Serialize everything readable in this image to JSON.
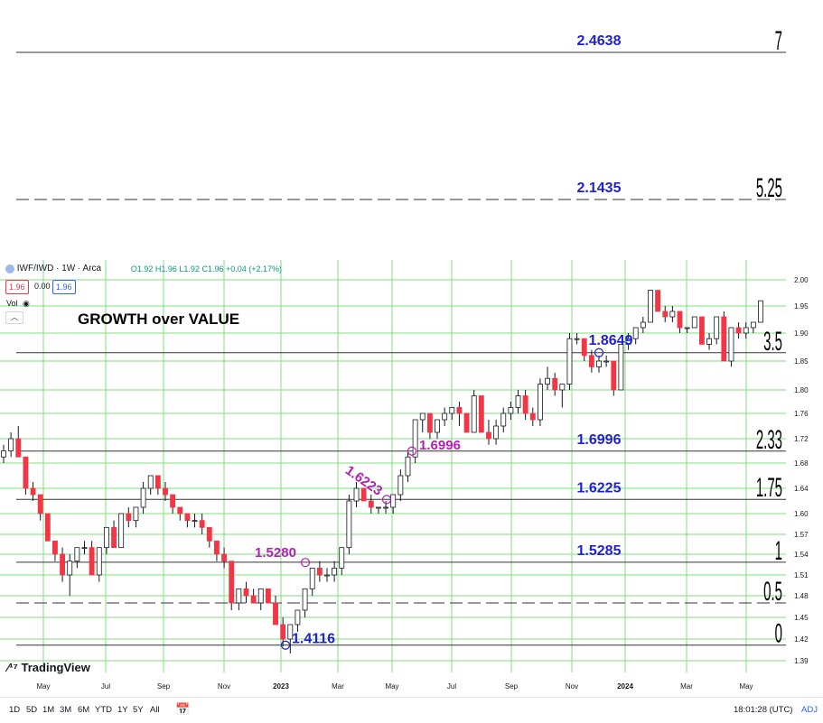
{
  "header": {
    "symbol": "IWF/IWD · 1W · Arca",
    "ohlc": "O1.92 H1.96 L1.92 C1.96 +0.04 (+2.17%)",
    "bid": "1.96",
    "spread": "0.00",
    "ask": "1.96",
    "vol": "Vol"
  },
  "annotation_title": "GROWTH over VALUE",
  "logo_text": "TradingView",
  "bottom": {
    "ranges": [
      "1D",
      "5D",
      "1M",
      "3M",
      "6M",
      "YTD",
      "1Y",
      "5Y",
      "All"
    ],
    "time": "18:01:28 (UTC)",
    "adj": "ADJ"
  },
  "colors": {
    "up": "#ffffff",
    "down": "#f23645",
    "grid": "#7ee07e",
    "fib_label": "#1f1fd6",
    "pivot_label": "#b31fb3"
  },
  "chart_data": {
    "type": "candlestick",
    "title": "GROWTH over VALUE",
    "ylim": [
      1.38,
      2.01
    ],
    "y_ticks": [
      "2.00",
      "1.95",
      "1.90",
      "1.85",
      "1.80",
      "1.76",
      "1.72",
      "1.68",
      "1.64",
      "1.60",
      "1.57",
      "1.54",
      "1.51",
      "1.48",
      "1.45",
      "1.42",
      "1.39"
    ],
    "x_ticks": [
      "May",
      "Jul",
      "Sep",
      "Nov",
      "2023",
      "Mar",
      "May",
      "Jul",
      "Sep",
      "Nov",
      "2024",
      "Mar",
      "May"
    ],
    "candles_ohlc": [
      [
        1.69,
        1.71,
        1.68,
        1.7
      ],
      [
        1.7,
        1.73,
        1.69,
        1.72
      ],
      [
        1.72,
        1.74,
        1.69,
        1.69
      ],
      [
        1.69,
        1.69,
        1.63,
        1.64
      ],
      [
        1.64,
        1.65,
        1.62,
        1.63
      ],
      [
        1.63,
        1.63,
        1.59,
        1.6
      ],
      [
        1.6,
        1.6,
        1.56,
        1.56
      ],
      [
        1.56,
        1.56,
        1.53,
        1.54
      ],
      [
        1.54,
        1.55,
        1.5,
        1.51
      ],
      [
        1.51,
        1.54,
        1.48,
        1.53
      ],
      [
        1.53,
        1.55,
        1.52,
        1.55
      ],
      [
        1.55,
        1.56,
        1.54,
        1.55
      ],
      [
        1.55,
        1.56,
        1.51,
        1.51
      ],
      [
        1.51,
        1.55,
        1.5,
        1.55
      ],
      [
        1.55,
        1.58,
        1.54,
        1.58
      ],
      [
        1.58,
        1.59,
        1.55,
        1.55
      ],
      [
        1.55,
        1.6,
        1.55,
        1.6
      ],
      [
        1.6,
        1.61,
        1.58,
        1.59
      ],
      [
        1.59,
        1.61,
        1.58,
        1.61
      ],
      [
        1.61,
        1.65,
        1.6,
        1.64
      ],
      [
        1.64,
        1.66,
        1.63,
        1.66
      ],
      [
        1.66,
        1.66,
        1.63,
        1.64
      ],
      [
        1.64,
        1.65,
        1.62,
        1.63
      ],
      [
        1.63,
        1.63,
        1.6,
        1.61
      ],
      [
        1.61,
        1.61,
        1.59,
        1.6
      ],
      [
        1.6,
        1.6,
        1.58,
        1.59
      ],
      [
        1.59,
        1.6,
        1.58,
        1.59
      ],
      [
        1.59,
        1.6,
        1.57,
        1.58
      ],
      [
        1.58,
        1.58,
        1.55,
        1.56
      ],
      [
        1.56,
        1.56,
        1.53,
        1.54
      ],
      [
        1.54,
        1.55,
        1.52,
        1.53
      ],
      [
        1.53,
        1.53,
        1.46,
        1.47
      ],
      [
        1.47,
        1.49,
        1.46,
        1.49
      ],
      [
        1.49,
        1.5,
        1.47,
        1.48
      ],
      [
        1.48,
        1.49,
        1.47,
        1.47
      ],
      [
        1.47,
        1.49,
        1.46,
        1.49
      ],
      [
        1.49,
        1.49,
        1.47,
        1.47
      ],
      [
        1.47,
        1.48,
        1.44,
        1.44
      ],
      [
        1.44,
        1.45,
        1.41,
        1.42
      ],
      [
        1.42,
        1.44,
        1.4,
        1.44
      ],
      [
        1.44,
        1.46,
        1.43,
        1.46
      ],
      [
        1.46,
        1.49,
        1.45,
        1.49
      ],
      [
        1.49,
        1.52,
        1.48,
        1.52
      ],
      [
        1.52,
        1.53,
        1.5,
        1.51
      ],
      [
        1.51,
        1.52,
        1.5,
        1.51
      ],
      [
        1.51,
        1.53,
        1.5,
        1.52
      ],
      [
        1.52,
        1.55,
        1.51,
        1.55
      ],
      [
        1.55,
        1.63,
        1.54,
        1.62
      ],
      [
        1.62,
        1.65,
        1.61,
        1.64
      ],
      [
        1.64,
        1.64,
        1.62,
        1.62
      ],
      [
        1.62,
        1.63,
        1.6,
        1.61
      ],
      [
        1.61,
        1.61,
        1.6,
        1.61
      ],
      [
        1.61,
        1.62,
        1.6,
        1.61
      ],
      [
        1.61,
        1.63,
        1.6,
        1.63
      ],
      [
        1.63,
        1.67,
        1.62,
        1.66
      ],
      [
        1.66,
        1.7,
        1.65,
        1.69
      ],
      [
        1.69,
        1.75,
        1.68,
        1.75
      ],
      [
        1.75,
        1.76,
        1.73,
        1.76
      ],
      [
        1.76,
        1.76,
        1.72,
        1.73
      ],
      [
        1.73,
        1.75,
        1.72,
        1.75
      ],
      [
        1.75,
        1.77,
        1.74,
        1.76
      ],
      [
        1.76,
        1.77,
        1.75,
        1.77
      ],
      [
        1.77,
        1.78,
        1.74,
        1.76
      ],
      [
        1.76,
        1.76,
        1.73,
        1.73
      ],
      [
        1.73,
        1.8,
        1.73,
        1.79
      ],
      [
        1.79,
        1.79,
        1.73,
        1.73
      ],
      [
        1.73,
        1.75,
        1.71,
        1.72
      ],
      [
        1.72,
        1.75,
        1.71,
        1.74
      ],
      [
        1.74,
        1.77,
        1.73,
        1.76
      ],
      [
        1.76,
        1.78,
        1.75,
        1.77
      ],
      [
        1.77,
        1.8,
        1.76,
        1.79
      ],
      [
        1.79,
        1.8,
        1.75,
        1.76
      ],
      [
        1.76,
        1.77,
        1.74,
        1.75
      ],
      [
        1.75,
        1.82,
        1.74,
        1.81
      ],
      [
        1.81,
        1.84,
        1.8,
        1.82
      ],
      [
        1.82,
        1.83,
        1.79,
        1.8
      ],
      [
        1.8,
        1.81,
        1.77,
        1.81
      ],
      [
        1.81,
        1.9,
        1.8,
        1.89
      ],
      [
        1.89,
        1.9,
        1.88,
        1.89
      ],
      [
        1.89,
        1.89,
        1.85,
        1.86
      ],
      [
        1.86,
        1.87,
        1.83,
        1.84
      ],
      [
        1.84,
        1.86,
        1.83,
        1.85
      ],
      [
        1.85,
        1.86,
        1.84,
        1.85
      ],
      [
        1.85,
        1.85,
        1.79,
        1.8
      ],
      [
        1.8,
        1.88,
        1.8,
        1.88
      ],
      [
        1.88,
        1.9,
        1.87,
        1.89
      ],
      [
        1.89,
        1.91,
        1.88,
        1.91
      ],
      [
        1.91,
        1.93,
        1.9,
        1.92
      ],
      [
        1.92,
        1.98,
        1.92,
        1.98
      ],
      [
        1.98,
        1.98,
        1.94,
        1.94
      ],
      [
        1.94,
        1.95,
        1.92,
        1.93
      ],
      [
        1.93,
        1.95,
        1.92,
        1.94
      ],
      [
        1.94,
        1.94,
        1.9,
        1.91
      ],
      [
        1.91,
        1.91,
        1.9,
        1.91
      ],
      [
        1.91,
        1.93,
        1.91,
        1.93
      ],
      [
        1.93,
        1.93,
        1.88,
        1.88
      ],
      [
        1.88,
        1.9,
        1.87,
        1.89
      ],
      [
        1.89,
        1.93,
        1.88,
        1.93
      ],
      [
        1.93,
        1.94,
        1.85,
        1.85
      ],
      [
        1.85,
        1.91,
        1.84,
        1.91
      ],
      [
        1.91,
        1.92,
        1.89,
        1.9
      ],
      [
        1.9,
        1.92,
        1.89,
        1.91
      ],
      [
        1.91,
        1.92,
        1.9,
        1.92
      ],
      [
        1.92,
        1.96,
        1.92,
        1.96
      ]
    ],
    "fib_levels": [
      {
        "value": 1.4116,
        "ratio": "0",
        "price_label": "1.4116"
      },
      {
        "value": 1.47,
        "ratio": "0.5",
        "price_label": "",
        "dashed": true
      },
      {
        "value": 1.5285,
        "ratio": "1",
        "price_label": "1.5285"
      },
      {
        "value": 1.6225,
        "ratio": "1.75",
        "price_label": "1.6225"
      },
      {
        "value": 1.6996,
        "ratio": "2.33",
        "price_label": "1.6996"
      },
      {
        "value": 1.8649,
        "ratio": "3.5",
        "price_label": "1.8649"
      },
      {
        "value": 2.1435,
        "ratio": "5.25",
        "price_label": "2.1435",
        "dashed": true
      },
      {
        "value": 2.4638,
        "ratio": "7",
        "price_label": "2.4638"
      }
    ],
    "pivot_labels": [
      {
        "text": "1.5280",
        "value": 1.528
      },
      {
        "text": "1.6223",
        "value": 1.6223
      },
      {
        "text": "1.6996",
        "value": 1.6996
      }
    ]
  }
}
